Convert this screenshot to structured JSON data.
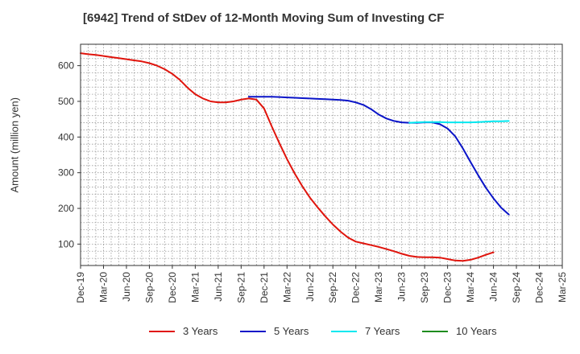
{
  "chart_data": {
    "type": "line",
    "title": "[6942]  Trend of StDev of 12-Month Moving Sum of Investing CF",
    "ylabel": "Amount (million yen)",
    "xlabel": "",
    "x_ticks": [
      "Dec-19",
      "Mar-20",
      "Jun-20",
      "Sep-20",
      "Dec-20",
      "Mar-21",
      "Jun-21",
      "Sep-21",
      "Dec-21",
      "Mar-22",
      "Jun-22",
      "Sep-22",
      "Dec-22",
      "Mar-23",
      "Jun-23",
      "Sep-23",
      "Dec-23",
      "Mar-24",
      "Jun-24",
      "Sep-24",
      "Dec-24",
      "Mar-25"
    ],
    "y_ticks": [
      100,
      200,
      300,
      400,
      500,
      600
    ],
    "ylim": [
      40,
      660
    ],
    "grid": true,
    "legend_position": "bottom",
    "series": [
      {
        "name": "3 Years",
        "color": "#e0140c",
        "points": [
          [
            "Dec-19",
            635
          ],
          [
            "Jan-20",
            632
          ],
          [
            "Feb-20",
            630
          ],
          [
            "Mar-20",
            627
          ],
          [
            "Apr-20",
            624
          ],
          [
            "May-20",
            621
          ],
          [
            "Jun-20",
            618
          ],
          [
            "Jul-20",
            615
          ],
          [
            "Aug-20",
            612
          ],
          [
            "Sep-20",
            607
          ],
          [
            "Oct-20",
            600
          ],
          [
            "Nov-20",
            590
          ],
          [
            "Dec-20",
            577
          ],
          [
            "Jan-21",
            560
          ],
          [
            "Feb-21",
            538
          ],
          [
            "Mar-21",
            520
          ],
          [
            "Apr-21",
            508
          ],
          [
            "May-21",
            500
          ],
          [
            "Jun-21",
            497
          ],
          [
            "Jul-21",
            497
          ],
          [
            "Aug-21",
            500
          ],
          [
            "Sep-21",
            505
          ],
          [
            "Oct-21",
            508
          ],
          [
            "Nov-21",
            505
          ],
          [
            "Dec-21",
            480
          ],
          [
            "Jan-22",
            430
          ],
          [
            "Feb-22",
            383
          ],
          [
            "Mar-22",
            338
          ],
          [
            "Apr-22",
            298
          ],
          [
            "May-22",
            262
          ],
          [
            "Jun-22",
            230
          ],
          [
            "Jul-22",
            203
          ],
          [
            "Aug-22",
            178
          ],
          [
            "Sep-22",
            155
          ],
          [
            "Oct-22",
            135
          ],
          [
            "Nov-22",
            118
          ],
          [
            "Dec-22",
            107
          ],
          [
            "Jan-23",
            102
          ],
          [
            "Feb-23",
            97
          ],
          [
            "Mar-23",
            92
          ],
          [
            "Apr-23",
            86
          ],
          [
            "May-23",
            80
          ],
          [
            "Jun-23",
            73
          ],
          [
            "Jul-23",
            67
          ],
          [
            "Aug-23",
            64
          ],
          [
            "Sep-23",
            63
          ],
          [
            "Oct-23",
            63
          ],
          [
            "Nov-23",
            62
          ],
          [
            "Dec-23",
            58
          ],
          [
            "Jan-24",
            54
          ],
          [
            "Feb-24",
            53
          ],
          [
            "Mar-24",
            56
          ],
          [
            "Apr-24",
            62
          ],
          [
            "May-24",
            70
          ],
          [
            "Jun-24",
            77
          ]
        ]
      },
      {
        "name": "5 Years",
        "color": "#0a14c8",
        "points": [
          [
            "Oct-21",
            513
          ],
          [
            "Nov-21",
            513
          ],
          [
            "Dec-21",
            513
          ],
          [
            "Jan-22",
            513
          ],
          [
            "Feb-22",
            512
          ],
          [
            "Mar-22",
            511
          ],
          [
            "Apr-22",
            510
          ],
          [
            "May-22",
            509
          ],
          [
            "Jun-22",
            508
          ],
          [
            "Jul-22",
            507
          ],
          [
            "Aug-22",
            506
          ],
          [
            "Sep-22",
            505
          ],
          [
            "Oct-22",
            504
          ],
          [
            "Nov-22",
            502
          ],
          [
            "Dec-22",
            497
          ],
          [
            "Jan-23",
            490
          ],
          [
            "Feb-23",
            478
          ],
          [
            "Mar-23",
            463
          ],
          [
            "Apr-23",
            452
          ],
          [
            "May-23",
            445
          ],
          [
            "Jun-23",
            441
          ],
          [
            "Jul-23",
            440
          ],
          [
            "Aug-23",
            440
          ],
          [
            "Sep-23",
            441
          ],
          [
            "Oct-23",
            441
          ],
          [
            "Nov-23",
            436
          ],
          [
            "Dec-23",
            424
          ],
          [
            "Jan-24",
            402
          ],
          [
            "Feb-24",
            368
          ],
          [
            "Mar-24",
            330
          ],
          [
            "Apr-24",
            293
          ],
          [
            "May-24",
            258
          ],
          [
            "Jun-24",
            228
          ],
          [
            "Jul-24",
            202
          ],
          [
            "Aug-24",
            183
          ]
        ]
      },
      {
        "name": "7 Years",
        "color": "#00e8f0",
        "points": [
          [
            "Jul-23",
            440
          ],
          [
            "Aug-23",
            441
          ],
          [
            "Sep-23",
            442
          ],
          [
            "Oct-23",
            442
          ],
          [
            "Nov-23",
            442
          ],
          [
            "Dec-23",
            441
          ],
          [
            "Jan-24",
            441
          ],
          [
            "Feb-24",
            441
          ],
          [
            "Mar-24",
            441
          ],
          [
            "Apr-24",
            442
          ],
          [
            "May-24",
            443
          ],
          [
            "Jun-24",
            444
          ],
          [
            "Jul-24",
            444
          ],
          [
            "Aug-24",
            445
          ]
        ]
      },
      {
        "name": "10 Years",
        "color": "#1e8c1e",
        "points": []
      }
    ]
  }
}
